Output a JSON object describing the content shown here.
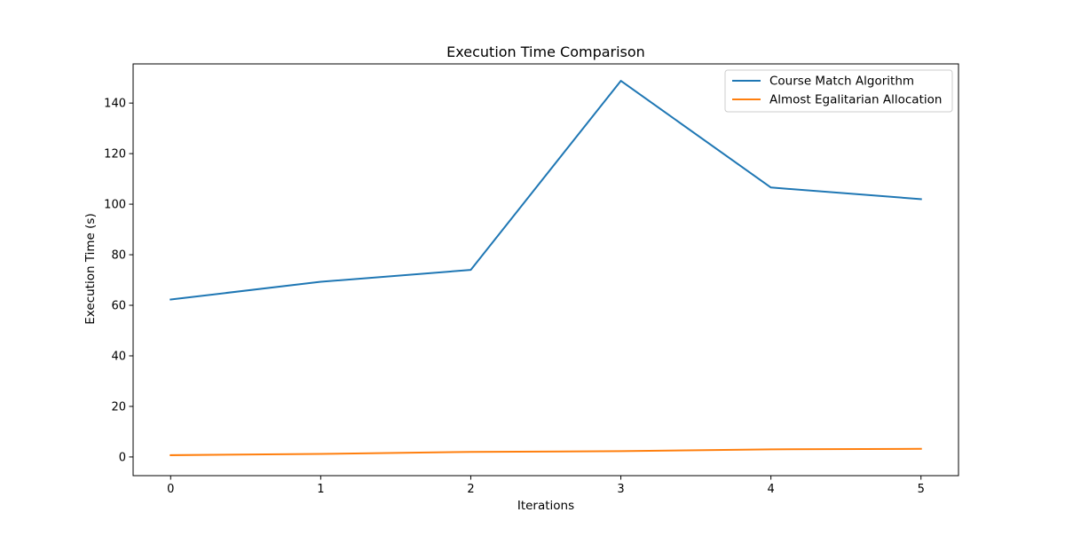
{
  "chart_data": {
    "type": "line",
    "title": "Execution Time Comparison",
    "xlabel": "Iterations",
    "ylabel": "Execution Time (s)",
    "x": [
      0,
      1,
      2,
      3,
      4,
      5
    ],
    "xlim": [
      -0.25,
      5.25
    ],
    "ylim": [
      -7.4,
      155.5
    ],
    "xticks": [
      0,
      1,
      2,
      3,
      4,
      5
    ],
    "yticks": [
      0,
      20,
      40,
      60,
      80,
      100,
      120,
      140
    ],
    "grid": false,
    "legend_position": "top-right",
    "series": [
      {
        "name": "Course Match Algorithm",
        "color": "#1f77b4",
        "values": [
          62.3,
          69.3,
          74.0,
          148.8,
          106.6,
          102.0
        ]
      },
      {
        "name": "Almost Egalitarian Allocation",
        "color": "#ff7f0e",
        "values": [
          0.7,
          1.2,
          2.0,
          2.3,
          3.0,
          3.2
        ]
      }
    ]
  }
}
